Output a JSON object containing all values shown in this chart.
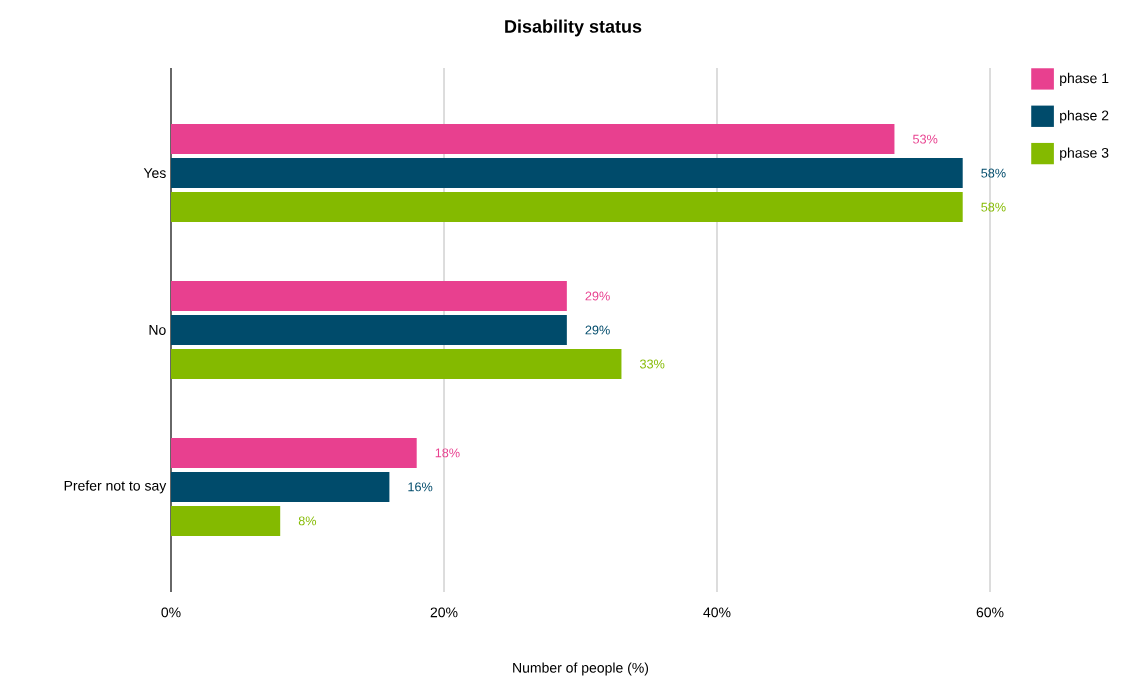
{
  "chart_data": {
    "type": "bar",
    "orientation": "horizontal",
    "title": "Disability status",
    "xlabel": "Number of people (%)",
    "categories": [
      "Yes",
      "No",
      "Prefer not to say"
    ],
    "series": [
      {
        "name": "phase 1",
        "color": "#e8408f",
        "values": [
          53,
          29,
          18
        ],
        "value_labels": [
          "53%",
          "29%",
          "18%"
        ]
      },
      {
        "name": "phase 2",
        "color": "#004b6b",
        "values": [
          58,
          29,
          16
        ],
        "value_labels": [
          "58%",
          "29%",
          "16%"
        ]
      },
      {
        "name": "phase 3",
        "color": "#84ba00",
        "values": [
          58,
          33,
          8
        ],
        "value_labels": [
          "58%",
          "33%",
          "8%"
        ]
      }
    ],
    "xlim": [
      0,
      60
    ],
    "xticks": [
      {
        "value": 0,
        "label": "0%"
      },
      {
        "value": 20,
        "label": "20%"
      },
      {
        "value": 40,
        "label": "40%"
      },
      {
        "value": 60,
        "label": "60%"
      }
    ],
    "grid": "x",
    "legend": "top right"
  }
}
